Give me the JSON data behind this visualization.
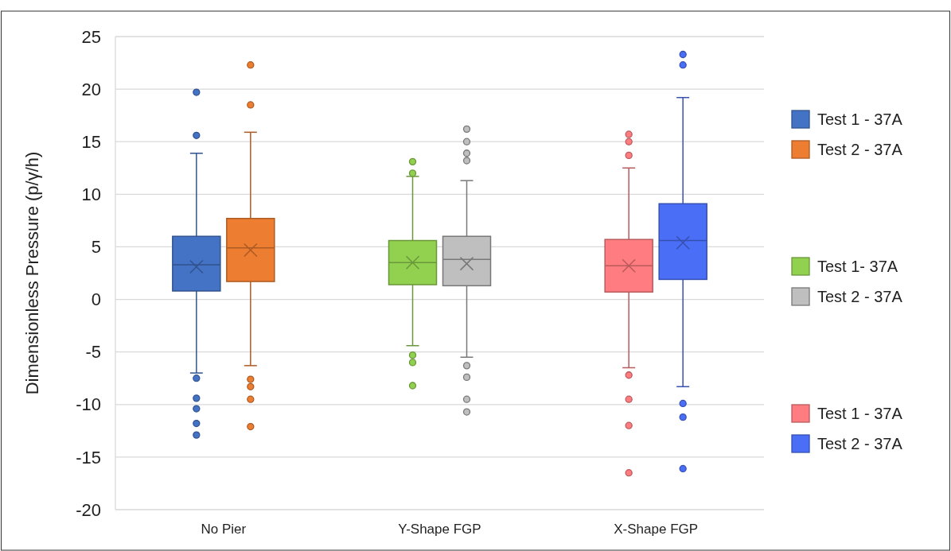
{
  "chart_data": {
    "type": "box",
    "ylabel": "Dimensionless Pressure (p/γ/h)",
    "categories": [
      "No Pier",
      "Y-Shape FGP",
      "X-Shape FGP"
    ],
    "ylim": [
      -20,
      25
    ],
    "yticks": [
      -20,
      -15,
      -10,
      -5,
      0,
      5,
      10,
      15,
      20,
      25
    ],
    "grid": "y",
    "legend": "right",
    "marker": "circle",
    "series": [
      {
        "name": "Test 1 - 37A",
        "color": "#4472c4",
        "boxes": [
          {
            "low": -7.0,
            "q1": 0.8,
            "median": 3.3,
            "q3": 6.0,
            "high": 13.9,
            "mean": 3.1,
            "outliers": [
              19.7,
              15.6,
              -7.5,
              -9.4,
              -10.4,
              -11.8,
              -12.9
            ]
          },
          null,
          null
        ]
      },
      {
        "name": "Test 2 - 37A",
        "color": "#ed7d31",
        "boxes": [
          {
            "low": -6.3,
            "q1": 1.7,
            "median": 4.9,
            "q3": 7.7,
            "high": 15.9,
            "mean": 4.7,
            "outliers": [
              22.3,
              18.5,
              -7.6,
              -8.3,
              -9.5,
              -12.1
            ]
          },
          null,
          null
        ]
      },
      {
        "name": "Test 1- 37A",
        "color": "#92d050",
        "boxes": [
          null,
          {
            "low": -4.4,
            "q1": 1.4,
            "median": 3.5,
            "q3": 5.6,
            "high": 11.7,
            "mean": 3.5,
            "outliers": [
              13.1,
              12.0,
              -5.3,
              -6.0,
              -8.2
            ]
          },
          null
        ]
      },
      {
        "name": "Test 2 - 37A",
        "color": "#bfbfbf",
        "boxes": [
          null,
          {
            "low": -5.5,
            "q1": 1.3,
            "median": 3.8,
            "q3": 6.0,
            "high": 11.3,
            "mean": 3.4,
            "outliers": [
              16.2,
              15.0,
              13.9,
              13.2,
              -6.3,
              -7.4,
              -9.5,
              -10.7
            ]
          },
          null
        ]
      },
      {
        "name": "Test 1 - 37A",
        "color": "#ff7c80",
        "boxes": [
          null,
          null,
          {
            "low": -6.5,
            "q1": 0.7,
            "median": 3.2,
            "q3": 5.7,
            "high": 12.5,
            "mean": 3.2,
            "outliers": [
              15.7,
              15.0,
              13.7,
              -7.2,
              -9.5,
              -12.0,
              -16.5
            ]
          }
        ]
      },
      {
        "name": "Test 2 - 37A",
        "color": "#4a6ef5",
        "boxes": [
          null,
          null,
          {
            "low": -8.3,
            "q1": 1.9,
            "median": 5.6,
            "q3": 9.1,
            "high": 19.2,
            "mean": 5.4,
            "outliers": [
              23.3,
              22.3,
              -9.9,
              -11.2,
              -16.1
            ]
          }
        ]
      }
    ]
  }
}
